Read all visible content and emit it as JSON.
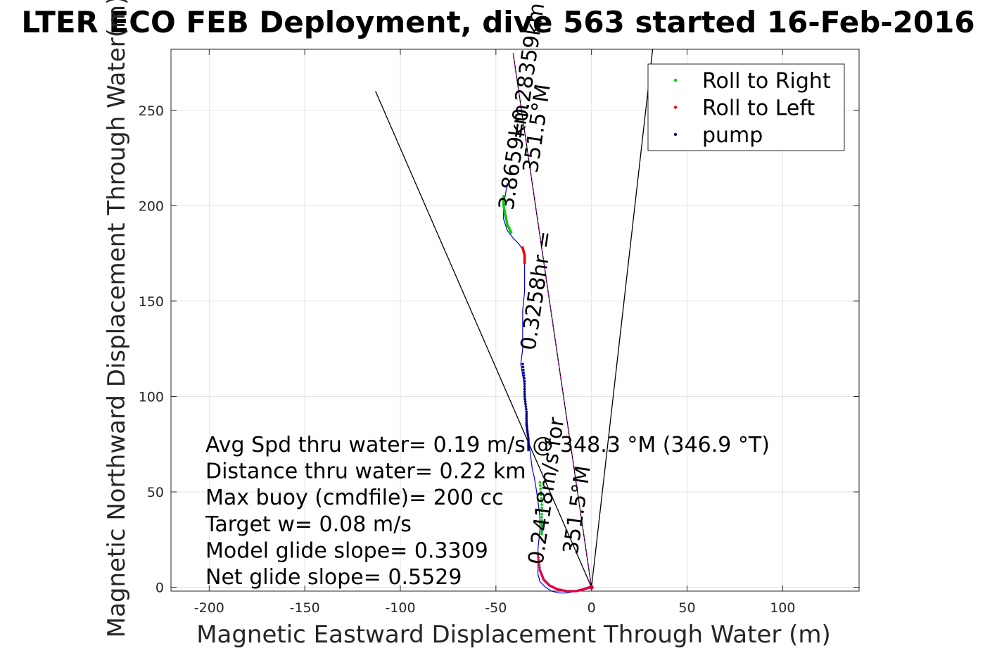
{
  "chart_data": {
    "type": "line",
    "title": "LTER ECO FEB Deployment, dive 563 started 16-Feb-2016",
    "xlabel": "Magnetic Eastward Displacement Through Water (m)",
    "ylabel": "Magnetic Northward Displacement Through Water(m)",
    "xlim": [
      -220,
      140
    ],
    "ylim": [
      -2,
      282
    ],
    "xticks": [
      -200,
      -150,
      -100,
      -50,
      0,
      50,
      100
    ],
    "yticks": [
      0,
      50,
      100,
      150,
      200,
      250
    ],
    "grid": true,
    "legend": {
      "placement": "top-right",
      "entries": [
        {
          "label": "Roll to Right",
          "color": "#00cc00"
        },
        {
          "label": "Roll to Left",
          "color": "#ee0000"
        },
        {
          "label": "pump",
          "color": "#000080"
        }
      ]
    },
    "track": {
      "color": "#0000cc",
      "x": [
        -44,
        -45,
        -46,
        -46,
        -44,
        -41,
        -38,
        -36,
        -35,
        -35,
        -35,
        -36,
        -36,
        -36,
        -37,
        -35,
        -34,
        -33,
        -32,
        -31,
        -30,
        -29,
        -28,
        -27,
        -27,
        -28,
        -28,
        -28,
        -27,
        -24,
        -21,
        -17,
        -13,
        -8,
        -4,
        -1,
        0
      ],
      "y": [
        212,
        206,
        200,
        193,
        187,
        183,
        180,
        177,
        173,
        165,
        155,
        145,
        135,
        125,
        117,
        105,
        90,
        80,
        70,
        62,
        58,
        52,
        45,
        37,
        30,
        20,
        12,
        7,
        3,
        0,
        -2,
        -3,
        -3,
        -2,
        -1,
        0,
        0
      ]
    },
    "segments": [
      {
        "name": "roll_right",
        "color": "#00cc00",
        "x": [
          -46,
          -46,
          -45,
          -44,
          -42
        ],
        "y": [
          205,
          200,
          195,
          190,
          186
        ]
      },
      {
        "name": "roll_right",
        "color": "#00cc00",
        "x": [
          -27,
          -26,
          -26,
          -26
        ],
        "y": [
          55,
          45,
          35,
          28
        ]
      },
      {
        "name": "roll_left",
        "color": "#ee0000",
        "x": [
          -36,
          -35,
          -35
        ],
        "y": [
          178,
          174,
          170
        ]
      },
      {
        "name": "roll_left",
        "color": "#dd0044",
        "x": [
          -28,
          -27,
          -25,
          -22,
          -18,
          -13,
          -8,
          -4,
          -1
        ],
        "y": [
          17,
          9,
          4,
          1,
          -1,
          -2,
          -2,
          -1,
          0
        ]
      },
      {
        "name": "pump",
        "color": "#000080",
        "x": [
          -36,
          -35,
          -35,
          -34,
          -34,
          -33,
          -33
        ],
        "y": [
          117,
          108,
          100,
          92,
          85,
          78,
          72
        ]
      }
    ],
    "lines": [
      {
        "name": "heading-line",
        "color": "#000000",
        "x": [
          0,
          -41
        ],
        "y": [
          0,
          280
        ]
      },
      {
        "name": "cone-left",
        "color": "#000000",
        "x": [
          0,
          -113
        ],
        "y": [
          0,
          260
        ]
      },
      {
        "name": "cone-right",
        "color": "#000000",
        "x": [
          0,
          32
        ],
        "y": [
          0,
          282
        ]
      },
      {
        "name": "current-line",
        "color": "#cc00cc",
        "x": [
          0,
          -41
        ],
        "y": [
          0,
          280
        ]
      }
    ],
    "rotated_annotations": [
      {
        "text": "3.8659km",
        "x": -37,
        "y": 225
      },
      {
        "text": "351.5°M",
        "x": -25,
        "y": 240
      },
      {
        "text": "=0.28359km",
        "x": -30,
        "y": 270
      },
      {
        "text": "0.3258hr =",
        "x": -25,
        "y": 155
      },
      {
        "text": "0.2418m/s for",
        "x": -20,
        "y": 50
      },
      {
        "text": "351.5°M",
        "x": -4,
        "y": 40
      }
    ],
    "stats": [
      "Avg Spd thru water=  0.19 m/s @ 348.3 °M (346.9 °T)",
      "Distance thru water=  0.22 km",
      "Max buoy (cmdfile)= 200 cc",
      "Target w= 0.08 m/s",
      "Model glide slope= 0.3309",
      "Net glide slope= 0.5529"
    ]
  }
}
